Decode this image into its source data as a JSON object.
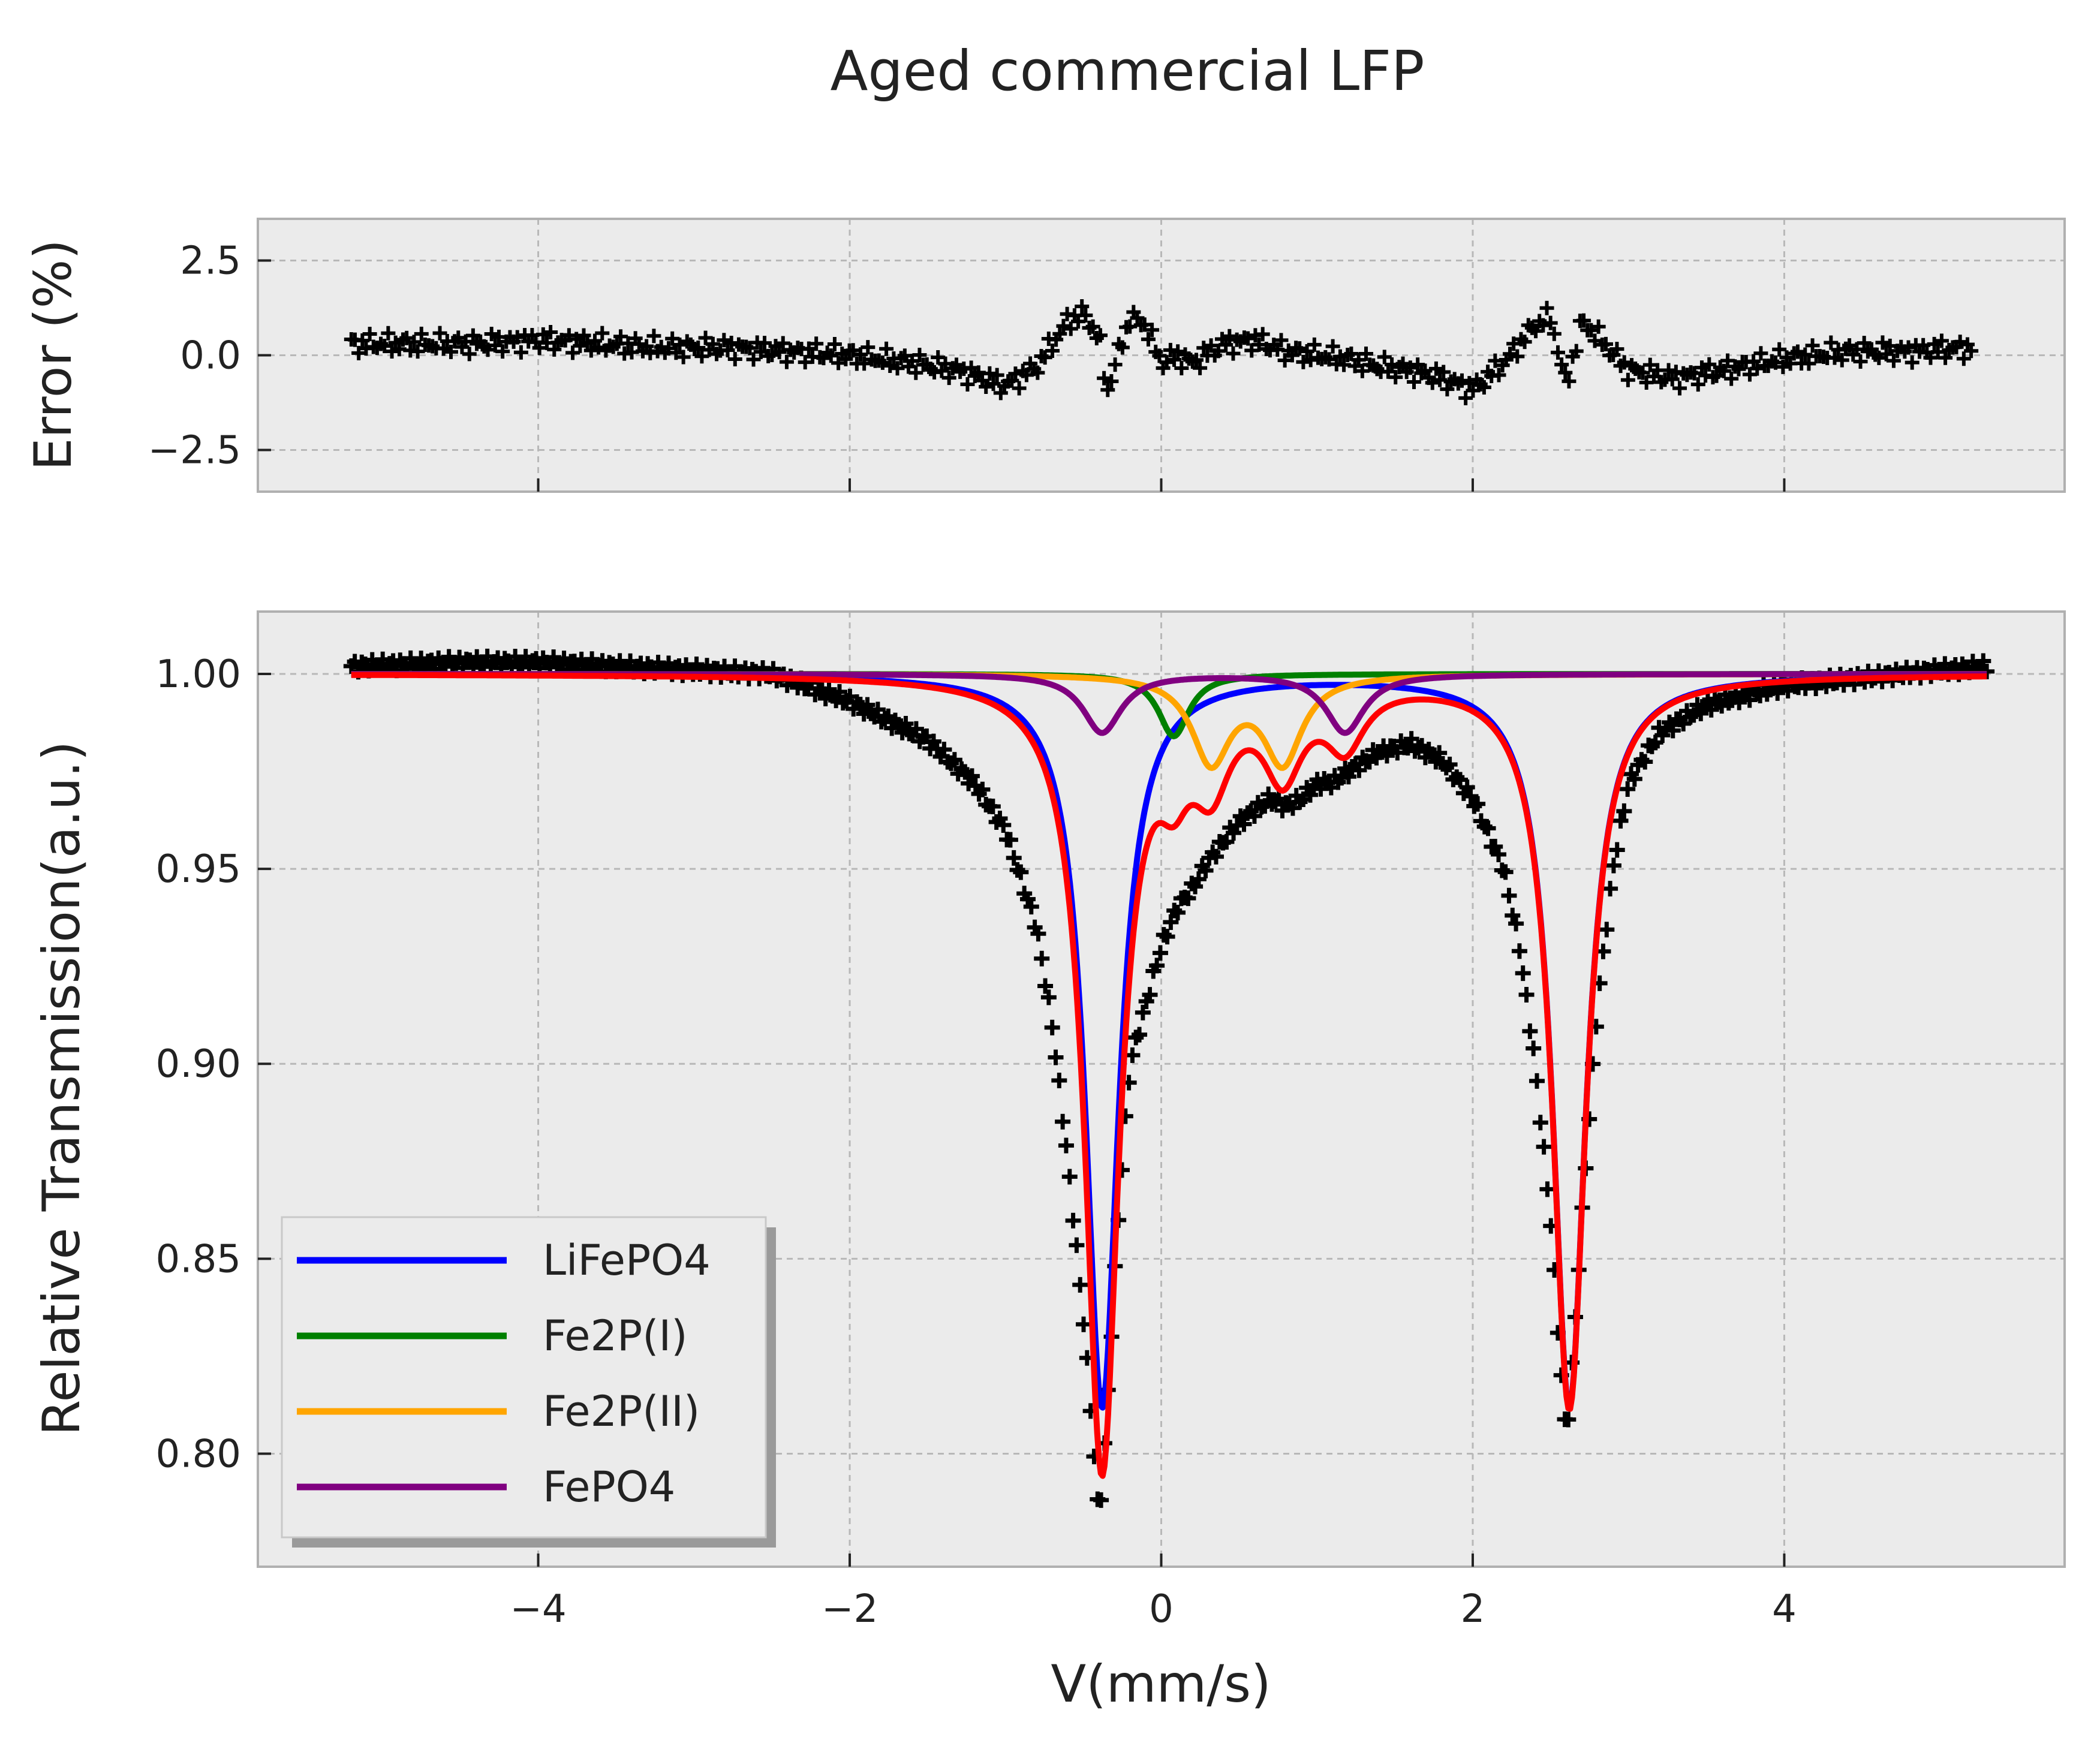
{
  "figure": {
    "title": "Aged commercial LFP"
  },
  "chart_data": [
    {
      "type": "scatter",
      "panel": "error",
      "xlabel": "",
      "ylabel": "Error (%)",
      "xlim": [
        -5.8,
        5.8
      ],
      "ylim": [
        -3.6,
        3.6
      ],
      "xticks": [
        -4,
        -2,
        0,
        2,
        4
      ],
      "xtick_labels": [],
      "yticks": [
        2.5,
        0.0,
        -2.5
      ],
      "ytick_labels": [
        "2.5",
        "0.0",
        "−2.5"
      ],
      "grid": true,
      "background": "#ebebeb",
      "series": [
        {
          "color": "#000000",
          "marker": "plus",
          "x": [
            -5.2,
            -4.8,
            -4.4,
            -4.0,
            -3.6,
            -3.2,
            -2.8,
            -2.4,
            -2.0,
            -1.6,
            -1.3,
            -1.0,
            -0.8,
            -0.6,
            -0.5,
            -0.4,
            -0.35,
            -0.3,
            -0.2,
            -0.1,
            0.0,
            0.1,
            0.2,
            0.4,
            0.6,
            0.8,
            1.0,
            1.2,
            1.4,
            1.6,
            1.8,
            2.0,
            2.2,
            2.4,
            2.5,
            2.6,
            2.7,
            2.8,
            3.0,
            3.3,
            3.6,
            4.0,
            4.4,
            4.8,
            5.2
          ],
          "y": [
            0.3,
            0.3,
            0.3,
            0.4,
            0.3,
            0.2,
            0.2,
            0.1,
            0.0,
            -0.2,
            -0.4,
            -0.8,
            -0.3,
            0.9,
            1.1,
            0.5,
            -1.0,
            -0.3,
            1.0,
            0.8,
            -0.2,
            0.0,
            -0.2,
            0.3,
            0.4,
            0.1,
            0.0,
            -0.1,
            -0.3,
            -0.4,
            -0.6,
            -0.9,
            -0.2,
            0.8,
            1.0,
            -0.8,
            0.9,
            0.5,
            -0.4,
            -0.6,
            -0.4,
            -0.1,
            0.1,
            0.1,
            0.2
          ]
        }
      ]
    },
    {
      "type": "line",
      "panel": "spectrum",
      "xlabel": "V(mm/s)",
      "ylabel": "Relative Transmission(a.u.)",
      "xlim": [
        -5.8,
        5.8
      ],
      "ylim": [
        0.771,
        1.016
      ],
      "xticks": [
        -4,
        -2,
        0,
        2,
        4
      ],
      "xtick_labels": [
        "−4",
        "−2",
        "0",
        "2",
        "4"
      ],
      "yticks": [
        1.0,
        0.95,
        0.9,
        0.85,
        0.8
      ],
      "ytick_labels": [
        "1.00",
        "0.95",
        "0.90",
        "0.85",
        "0.80"
      ],
      "grid": true,
      "background": "#ebebeb",
      "legend_position": "lower-left",
      "data_points": {
        "color": "#000000",
        "marker": "plus",
        "x": [
          -5.2,
          -4.5,
          -4.0,
          -3.5,
          -3.0,
          -2.5,
          -2.0,
          -1.5,
          -1.2,
          -1.0,
          -0.8,
          -0.7,
          -0.6,
          -0.5,
          -0.45,
          -0.4,
          -0.35,
          -0.3,
          -0.25,
          -0.2,
          -0.1,
          0.0,
          0.1,
          0.2,
          0.3,
          0.4,
          0.5,
          0.6,
          0.7,
          0.8,
          0.9,
          1.0,
          1.1,
          1.2,
          1.4,
          1.6,
          1.8,
          2.0,
          2.2,
          2.3,
          2.4,
          2.5,
          2.55,
          2.6,
          2.65,
          2.7,
          2.8,
          2.9,
          3.0,
          3.2,
          3.5,
          4.0,
          4.5,
          5.0,
          5.3
        ],
        "y": [
          1.002,
          1.003,
          1.003,
          1.002,
          1.001,
          1.0,
          0.993,
          0.983,
          0.972,
          0.96,
          0.935,
          0.91,
          0.875,
          0.835,
          0.81,
          0.782,
          0.81,
          0.845,
          0.875,
          0.9,
          0.915,
          0.93,
          0.94,
          0.945,
          0.952,
          0.957,
          0.962,
          0.965,
          0.968,
          0.966,
          0.968,
          0.972,
          0.972,
          0.975,
          0.98,
          0.982,
          0.978,
          0.968,
          0.95,
          0.93,
          0.9,
          0.86,
          0.83,
          0.803,
          0.83,
          0.86,
          0.915,
          0.95,
          0.972,
          0.985,
          0.992,
          0.997,
          0.999,
          1.001,
          1.002
        ]
      },
      "components": [
        {
          "name": "LiFePO4",
          "color": "#0000ff",
          "in_legend": true,
          "sites": [
            {
              "center": -0.38,
              "depth": 0.188,
              "hwhm": 0.13
            },
            {
              "center": 2.62,
              "depth": 0.188,
              "hwhm": 0.13
            }
          ]
        },
        {
          "name": "Fe2P(I)",
          "color": "#008000",
          "in_legend": true,
          "sites": [
            {
              "center": 0.08,
              "depth": 0.016,
              "hwhm": 0.12
            }
          ]
        },
        {
          "name": "Fe2P(II)",
          "color": "#ffa500",
          "in_legend": true,
          "sites": [
            {
              "center": 0.32,
              "depth": 0.022,
              "hwhm": 0.15
            },
            {
              "center": 0.78,
              "depth": 0.022,
              "hwhm": 0.15
            }
          ]
        },
        {
          "name": "FePO4",
          "color": "#800080",
          "in_legend": true,
          "sites": [
            {
              "center": -0.38,
              "depth": 0.015,
              "hwhm": 0.15
            },
            {
              "center": 1.18,
              "depth": 0.015,
              "hwhm": 0.15
            }
          ]
        }
      ],
      "total_fit": {
        "color": "#ff0000",
        "in_legend": false,
        "x_range": [
          -5.2,
          5.3
        ]
      }
    }
  ]
}
